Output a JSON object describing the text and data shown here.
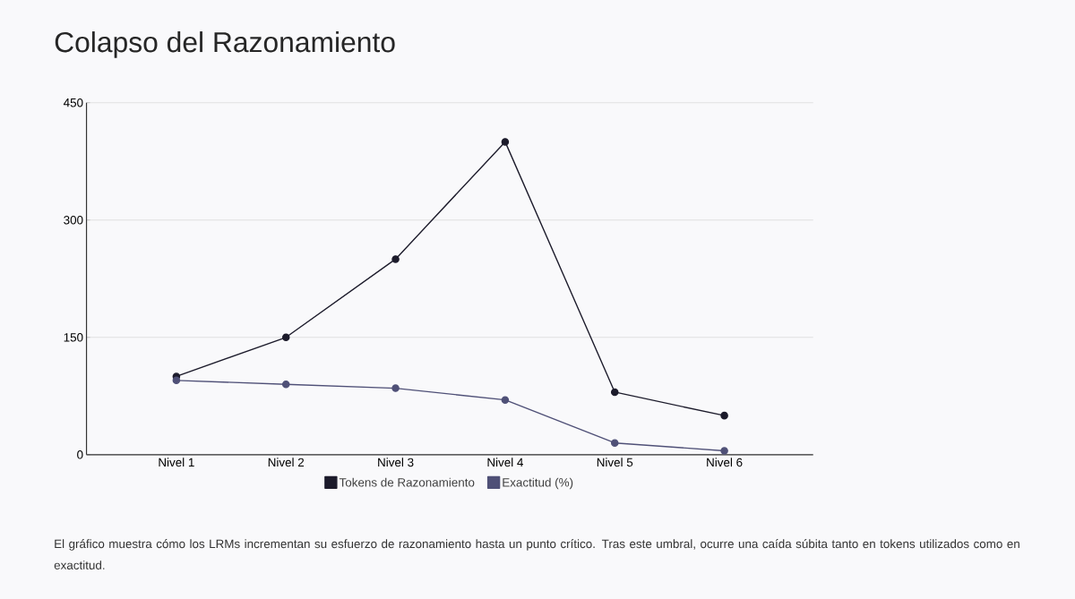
{
  "chart_data": {
    "type": "line",
    "title": "Colapso del Razonamiento",
    "categories": [
      "Nivel 1",
      "Nivel 2",
      "Nivel 3",
      "Nivel 4",
      "Nivel 5",
      "Nivel 6"
    ],
    "series": [
      {
        "name": "Tokens de Razonamiento",
        "color": "#1c1b2b",
        "values": [
          100,
          150,
          250,
          400,
          80,
          50
        ]
      },
      {
        "name": "Exactitud (%)",
        "color": "#4f5077",
        "values": [
          95,
          90,
          85,
          70,
          15,
          5
        ]
      }
    ],
    "ylim": [
      0,
      450
    ],
    "yticks": [
      0,
      150,
      300,
      450
    ],
    "grid": "y",
    "legend": "bottom",
    "marker": "circle",
    "line_style": "solid",
    "annotations": [
      "El gráfico muestra cómo los LRMs incrementan su esfuerzo de razonamiento hasta un punto crítico. Tras este umbral, ocurre una caída súbita tanto en tokens utilizados como en exactitud."
    ]
  }
}
